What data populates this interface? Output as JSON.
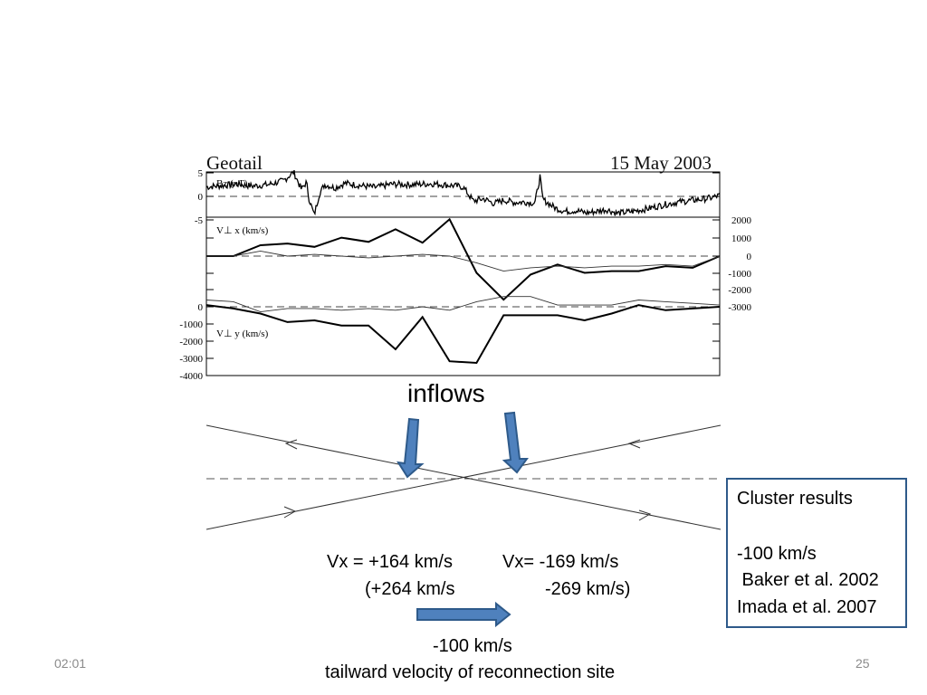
{
  "slide": {
    "page_number": "25",
    "time": "02:01"
  },
  "figure": {
    "title": "Geotail",
    "date": "15 May 2003"
  },
  "chart_data": [
    {
      "type": "line",
      "name": "bz-panel",
      "ylabel": "Bz (nT)",
      "ylim": [
        -8,
        5
      ],
      "yticks": [
        "5",
        "0",
        "-5"
      ],
      "x": [
        0.0,
        0.03,
        0.06,
        0.09,
        0.12,
        0.15,
        0.17,
        0.185,
        0.195,
        0.2,
        0.21,
        0.22,
        0.23,
        0.24,
        0.25,
        0.27,
        0.3,
        0.33,
        0.36,
        0.4,
        0.44,
        0.48,
        0.5,
        0.52,
        0.54,
        0.56,
        0.58,
        0.6,
        0.62,
        0.64,
        0.65,
        0.655,
        0.66,
        0.68,
        0.7,
        0.72,
        0.74,
        0.76,
        0.78,
        0.8,
        0.83,
        0.86,
        0.89,
        0.92,
        0.95,
        0.98,
        1.0
      ],
      "values": [
        2.0,
        2.3,
        2.6,
        2.2,
        2.5,
        3.3,
        5.2,
        1.5,
        3.0,
        -0.5,
        -4.0,
        0.5,
        2.5,
        2.2,
        1.8,
        2.8,
        2.3,
        1.9,
        2.6,
        2.5,
        2.7,
        2.3,
        2.0,
        -1.0,
        -0.5,
        -1.5,
        -0.8,
        -1.3,
        -1.2,
        -1.4,
        4.2,
        -0.5,
        -1.0,
        -2.5,
        -3.2,
        -3.0,
        -3.5,
        -3.2,
        -2.8,
        -3.6,
        -3.2,
        -2.6,
        -1.8,
        -1.2,
        -0.8,
        -0.4,
        0.2
      ]
    },
    {
      "type": "line",
      "name": "vperp-x-panel",
      "ylabel": "V⊥ x (km/s)",
      "ylim": [
        -3000,
        2000
      ],
      "yticks": [
        "2000",
        "1000",
        "0",
        "-1000",
        "-2000",
        "-3000"
      ],
      "series": [
        {
          "role": "thick",
          "values": [
            0,
            0,
            650,
            750,
            550,
            1100,
            850,
            1600,
            800,
            2200,
            -1000,
            -2600,
            -1100,
            -500,
            -1000,
            -900,
            -900,
            -600,
            -700,
            0
          ]
        },
        {
          "role": "thin",
          "values": [
            0,
            0,
            300,
            0,
            100,
            0,
            -100,
            0,
            100,
            0,
            -400,
            -900,
            -700,
            -600,
            -700,
            -600,
            -600,
            -500,
            -600,
            0
          ]
        }
      ]
    },
    {
      "type": "line",
      "name": "vperp-y-panel",
      "ylabel": "V⊥ y (km/s)",
      "ylim": [
        -4000,
        500
      ],
      "yticks": [
        "0",
        "-1000",
        "-2000",
        "-3000",
        "-4000"
      ],
      "series": [
        {
          "role": "thick",
          "values": [
            100,
            -100,
            -400,
            -900,
            -800,
            -1100,
            -1100,
            -2500,
            -600,
            -3200,
            -3300,
            -500,
            -500,
            -500,
            -800,
            -400,
            100,
            -200,
            -100,
            0
          ]
        },
        {
          "role": "thin",
          "values": [
            400,
            300,
            -300,
            -100,
            -100,
            -200,
            -100,
            -200,
            0,
            -200,
            300,
            600,
            600,
            100,
            100,
            100,
            400,
            300,
            200,
            100
          ]
        }
      ]
    }
  ],
  "annotations": {
    "inflows": "inflows",
    "vx_left_line1": "Vx = +164 km/s",
    "vx_left_line2": "(+264 km/s",
    "vx_right_line1": "Vx= -169 km/s",
    "vx_right_line2": "-269 km/s)",
    "tailward_value": "-100 km/s",
    "tailward_label": "tailward velocity of reconnection site"
  },
  "cluster_box": {
    "title": "Cluster results",
    "value": "-100 km/s",
    "ref1": " Baker et al. 2002",
    "ref2": "Imada et al. 2007"
  },
  "colors": {
    "arrow_fill": "#4f81bd",
    "arrow_stroke": "#2e5a8a",
    "box_border": "#2e5a8a",
    "footer": "#8a8a8a"
  }
}
